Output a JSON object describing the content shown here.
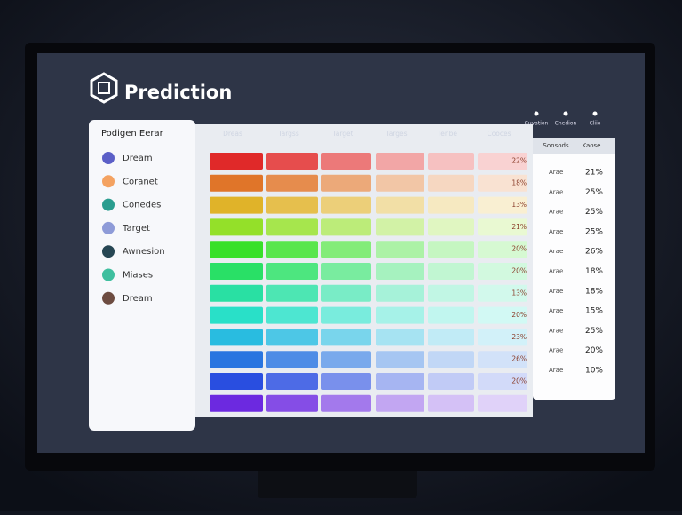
{
  "header": {
    "title": "Prediction",
    "actions": [
      "Cuvation",
      "Cnedion",
      "Cliio"
    ]
  },
  "sidebar": {
    "title": "Podigen Eerar",
    "items": [
      "Dream",
      "Coranet",
      "Conedes",
      "Target",
      "Awnesion",
      "Miases",
      "Dream"
    ]
  },
  "table": {
    "columns": [
      "Dreas",
      "Targss",
      "Target",
      "Targes",
      "Tenbe",
      "Cooces"
    ],
    "labels": [
      "22%",
      "18%",
      "13%",
      "21%",
      "20%",
      "20%",
      "13%",
      "20%",
      "23%",
      "26%",
      "20%"
    ]
  },
  "panel": {
    "columns": [
      "Sonsods",
      "Kaose"
    ],
    "rows": [
      [
        "Arae",
        "21%"
      ],
      [
        "Arae",
        "25%"
      ],
      [
        "Arae",
        "25%"
      ],
      [
        "Arae",
        "25%"
      ],
      [
        "Arae",
        "26%"
      ],
      [
        "Arae",
        "18%"
      ],
      [
        "Arae",
        "18%"
      ],
      [
        "Arae",
        "15%"
      ],
      [
        "Arae",
        "25%"
      ],
      [
        "Arae",
        "20%"
      ],
      [
        "Arae",
        "10%"
      ]
    ]
  }
}
